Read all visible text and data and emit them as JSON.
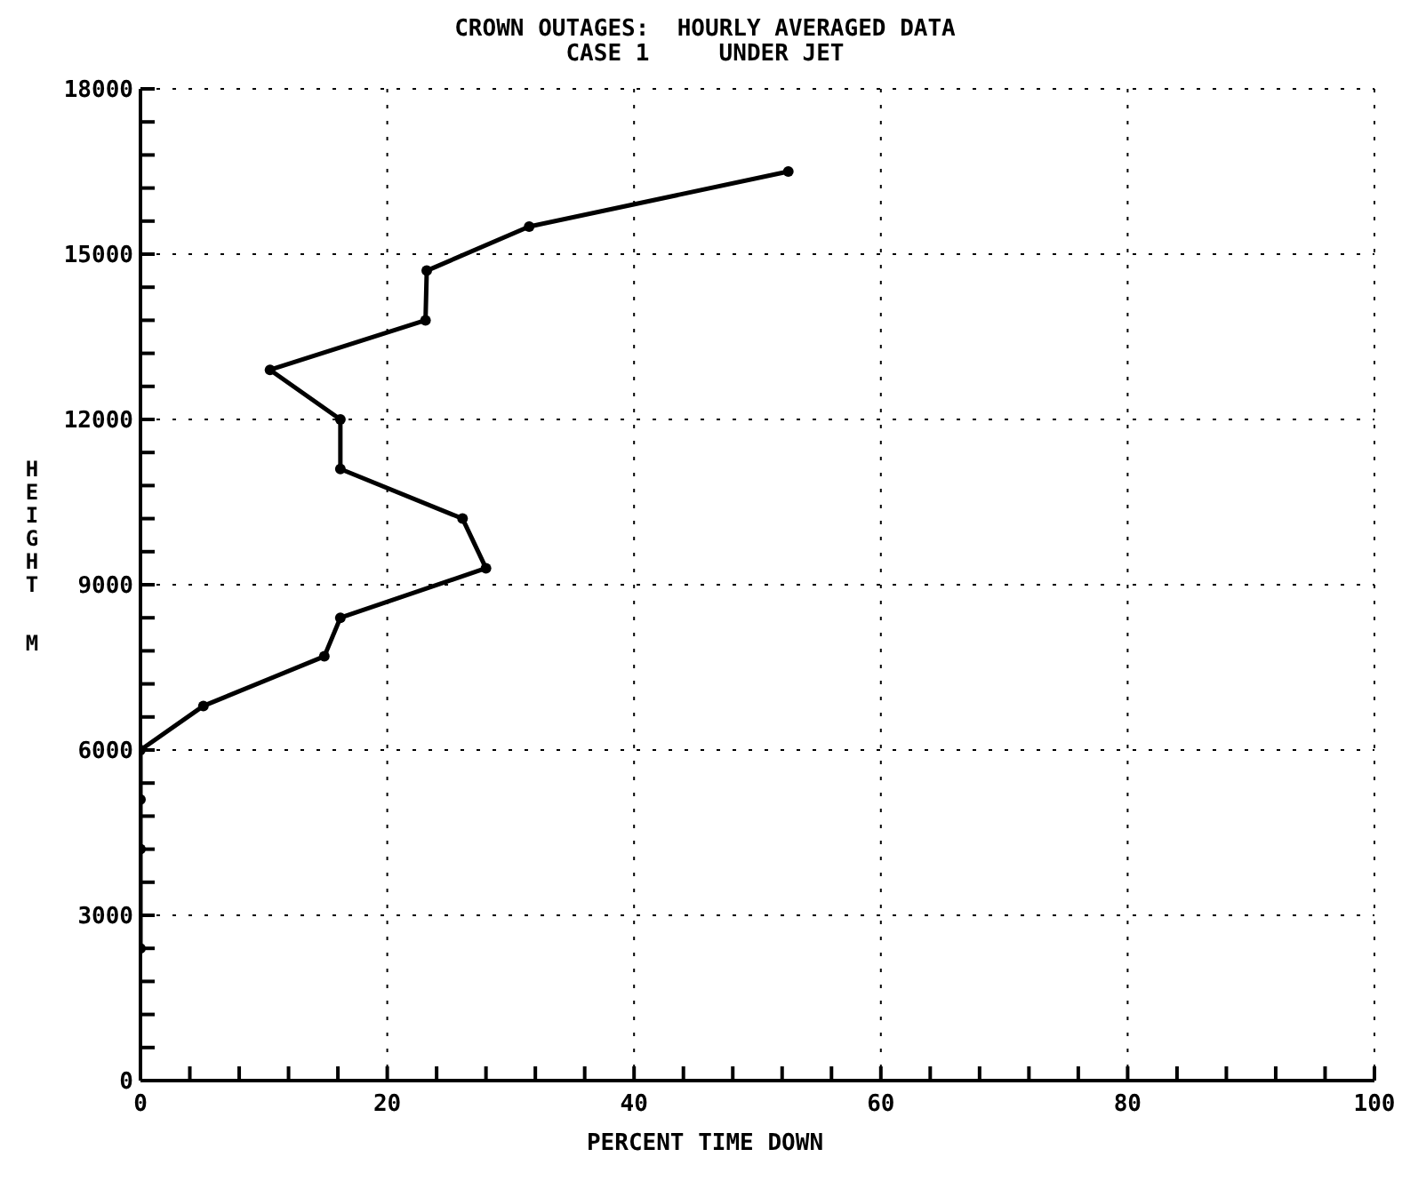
{
  "chart_data": {
    "type": "line",
    "title": "CROWN OUTAGES:  HOURLY AVERAGED DATA",
    "subtitle": "CASE 1     UNDER JET",
    "xlabel": "PERCENT TIME DOWN",
    "ylabel": "HEIGHT M",
    "x": [
      52.5,
      31.5,
      23.2,
      23.1,
      10.5,
      16.2,
      16.2,
      26.1,
      28.0,
      16.2,
      14.9,
      5.1,
      0,
      0,
      0,
      0
    ],
    "values": [
      16500,
      15500,
      14700,
      13800,
      12900,
      12000,
      11100,
      10200,
      9300,
      8400,
      7700,
      6800,
      6000,
      5100,
      4200,
      2400
    ],
    "color": "#000000",
    "marker": "circle",
    "line_style": "solid",
    "xlim": [
      0,
      100
    ],
    "ylim": [
      0,
      18000
    ],
    "xticks": [
      0,
      {
        "value": 4,
        "label": null
      },
      {
        "value": 8,
        "label": null
      },
      {
        "value": 12,
        "label": null
      },
      {
        "value": 16,
        "label": null
      },
      20,
      {
        "value": 24,
        "label": null
      },
      {
        "value": 28,
        "label": null
      },
      {
        "value": 32,
        "label": null
      },
      {
        "value": 36,
        "label": null
      },
      40,
      {
        "value": 44,
        "label": null
      },
      {
        "value": 48,
        "label": null
      },
      {
        "value": 52,
        "label": null
      },
      {
        "value": 56,
        "label": null
      },
      60,
      {
        "value": 64,
        "label": null
      },
      {
        "value": 68,
        "label": null
      },
      {
        "value": 72,
        "label": null
      },
      {
        "value": 76,
        "label": null
      },
      80,
      {
        "value": 84,
        "label": null
      },
      {
        "value": 88,
        "label": null
      },
      {
        "value": 92,
        "label": null
      },
      {
        "value": 96,
        "label": null
      },
      100
    ],
    "yticks": [
      0,
      {
        "value": 600,
        "label": null
      },
      {
        "value": 1200,
        "label": null
      },
      {
        "value": 1800,
        "label": null
      },
      {
        "value": 2400,
        "label": null
      },
      3000,
      {
        "value": 3600,
        "label": null
      },
      {
        "value": 4200,
        "label": null
      },
      {
        "value": 4800,
        "label": null
      },
      {
        "value": 5400,
        "label": null
      },
      6000,
      {
        "value": 6600,
        "label": null
      },
      {
        "value": 7200,
        "label": null
      },
      {
        "value": 7800,
        "label": null
      },
      {
        "value": 8400,
        "label": null
      },
      9000,
      {
        "value": 9600,
        "label": null
      },
      {
        "value": 10200,
        "label": null
      },
      {
        "value": 10800,
        "label": null
      },
      {
        "value": 11400,
        "label": null
      },
      12000,
      {
        "value": 12600,
        "label": null
      },
      {
        "value": 13200,
        "label": null
      },
      {
        "value": 13800,
        "label": null
      },
      {
        "value": 14400,
        "label": null
      },
      15000,
      {
        "value": 15600,
        "label": null
      },
      {
        "value": 16200,
        "label": null
      },
      {
        "value": 16800,
        "label": null
      },
      {
        "value": 17400,
        "label": null
      },
      18000
    ],
    "grid": true
  }
}
